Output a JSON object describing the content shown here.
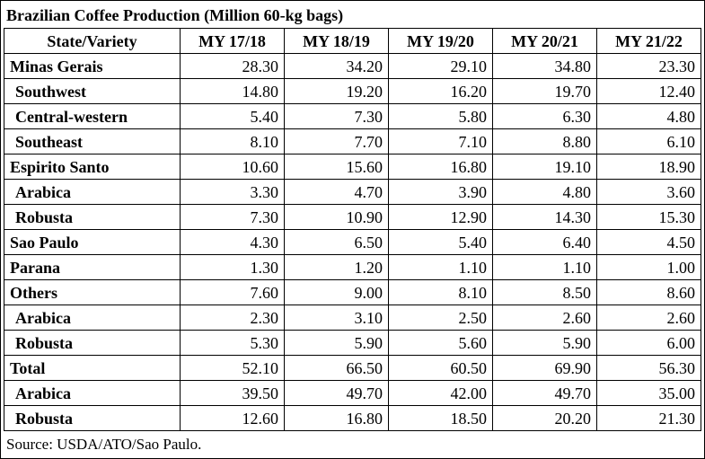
{
  "title": "Brazilian Coffee Production (Million 60-kg bags)",
  "headers": [
    "State/Variety",
    "MY 17/18",
    "MY 18/19",
    "MY 19/20",
    "MY 20/21",
    "MY 21/22"
  ],
  "rows": [
    {
      "label": "Minas Gerais",
      "indent": false,
      "values": [
        "28.30",
        "34.20",
        "29.10",
        "34.80",
        "23.30"
      ]
    },
    {
      "label": "Southwest",
      "indent": true,
      "values": [
        "14.80",
        "19.20",
        "16.20",
        "19.70",
        "12.40"
      ]
    },
    {
      "label": "Central-western",
      "indent": true,
      "values": [
        "5.40",
        "7.30",
        "5.80",
        "6.30",
        "4.80"
      ]
    },
    {
      "label": "Southeast",
      "indent": true,
      "values": [
        "8.10",
        "7.70",
        "7.10",
        "8.80",
        "6.10"
      ]
    },
    {
      "label": "Espirito Santo",
      "indent": false,
      "values": [
        "10.60",
        "15.60",
        "16.80",
        "19.10",
        "18.90"
      ]
    },
    {
      "label": "Arabica",
      "indent": true,
      "values": [
        "3.30",
        "4.70",
        "3.90",
        "4.80",
        "3.60"
      ]
    },
    {
      "label": "Robusta",
      "indent": true,
      "values": [
        "7.30",
        "10.90",
        "12.90",
        "14.30",
        "15.30"
      ]
    },
    {
      "label": "Sao Paulo",
      "indent": false,
      "values": [
        "4.30",
        "6.50",
        "5.40",
        "6.40",
        "4.50"
      ]
    },
    {
      "label": "Parana",
      "indent": false,
      "values": [
        "1.30",
        "1.20",
        "1.10",
        "1.10",
        "1.00"
      ]
    },
    {
      "label": "Others",
      "indent": false,
      "values": [
        "7.60",
        "9.00",
        "8.10",
        "8.50",
        "8.60"
      ]
    },
    {
      "label": "Arabica",
      "indent": true,
      "values": [
        "2.30",
        "3.10",
        "2.50",
        "2.60",
        "2.60"
      ]
    },
    {
      "label": "Robusta",
      "indent": true,
      "values": [
        "5.30",
        "5.90",
        "5.60",
        "5.90",
        "6.00"
      ]
    },
    {
      "label": "Total",
      "indent": false,
      "values": [
        "52.10",
        "66.50",
        "60.50",
        "69.90",
        "56.30"
      ]
    },
    {
      "label": "Arabica",
      "indent": true,
      "values": [
        "39.50",
        "49.70",
        "42.00",
        "49.70",
        "35.00"
      ]
    },
    {
      "label": "Robusta",
      "indent": true,
      "values": [
        "12.60",
        "16.80",
        "18.50",
        "20.20",
        "21.30"
      ]
    }
  ],
  "source": "Source: USDA/ATO/Sao Paulo."
}
